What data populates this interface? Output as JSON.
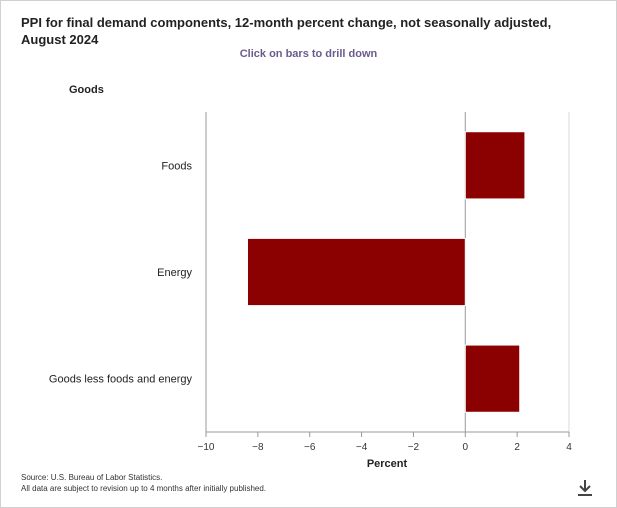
{
  "title": "PPI for final demand components, 12-month percent change, not seasonally adjusted, August 2024",
  "subtitle": "Click on bars to drill down",
  "group_label": "Goods",
  "source": {
    "line1": "Source: U.S. Bureau of Labor Statistics.",
    "line2": "All data are subject to revision up to 4 months after initially published."
  },
  "icons": {
    "download": "download-icon"
  },
  "colors": {
    "bar": "#8b0000",
    "axis": "#999999",
    "grid": "#d8d8d8"
  },
  "chart_data": {
    "type": "bar",
    "orientation": "horizontal",
    "categories": [
      "Foods",
      "Energy",
      "Goods less foods and energy"
    ],
    "values": [
      2.3,
      -8.4,
      2.1
    ],
    "xlabel": "Percent",
    "xlim": [
      -10,
      4
    ],
    "xticks": [
      -10,
      -8,
      -6,
      -4,
      -2,
      0,
      2,
      4
    ],
    "xtick_labels": [
      "−10",
      "−8",
      "−6",
      "−4",
      "−2",
      "0",
      "2",
      "4"
    ],
    "grid": false
  }
}
